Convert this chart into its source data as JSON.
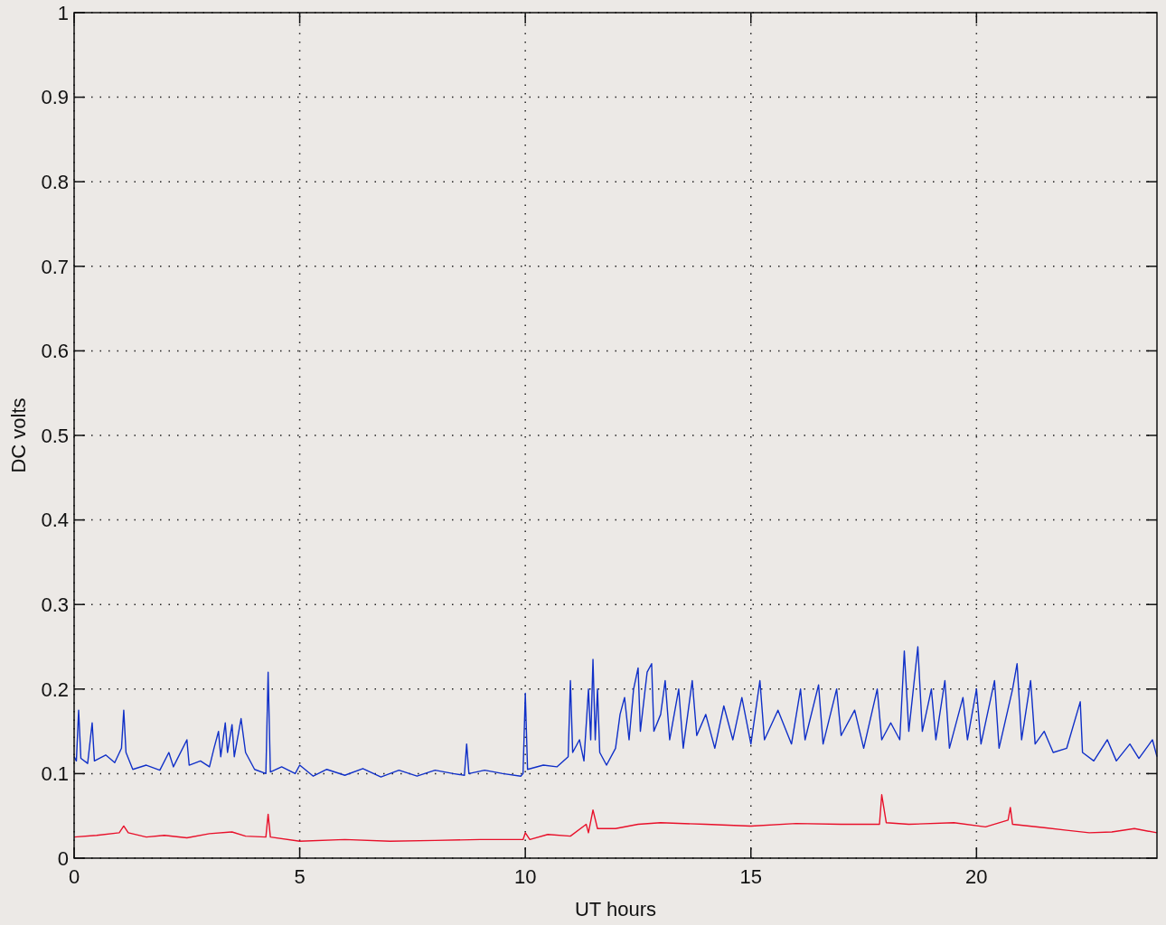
{
  "chart_data": {
    "type": "line",
    "xlabel": "UT hours",
    "ylabel": "DC volts",
    "xlim": [
      0,
      24
    ],
    "ylim": [
      0,
      1
    ],
    "xticks": [
      0,
      5,
      10,
      15,
      20
    ],
    "yticks": [
      0,
      0.1,
      0.2,
      0.3,
      0.4,
      0.5,
      0.6,
      0.7,
      0.8,
      0.9,
      1
    ],
    "grid": true,
    "marker": "none",
    "line_style": "solid",
    "series": [
      {
        "color": "#1030c8",
        "x": [
          0,
          0.05,
          0.1,
          0.15,
          0.3,
          0.4,
          0.45,
          0.7,
          0.9,
          1.05,
          1.1,
          1.15,
          1.3,
          1.6,
          1.9,
          2.1,
          2.2,
          2.5,
          2.55,
          2.8,
          3.0,
          3.1,
          3.2,
          3.25,
          3.35,
          3.4,
          3.5,
          3.55,
          3.7,
          3.8,
          4.0,
          4.25,
          4.3,
          4.35,
          4.6,
          4.9,
          5.0,
          5.3,
          5.6,
          6.0,
          6.4,
          6.8,
          7.2,
          7.6,
          8.0,
          8.4,
          8.65,
          8.7,
          8.75,
          9.1,
          9.5,
          9.9,
          9.95,
          10.0,
          10.05,
          10.4,
          10.7,
          10.95,
          11.0,
          11.05,
          11.2,
          11.3,
          11.4,
          11.45,
          11.5,
          11.55,
          11.6,
          11.65,
          11.8,
          12.0,
          12.1,
          12.2,
          12.3,
          12.4,
          12.5,
          12.55,
          12.7,
          12.8,
          12.85,
          13.0,
          13.1,
          13.2,
          13.4,
          13.5,
          13.7,
          13.8,
          14.0,
          14.2,
          14.4,
          14.6,
          14.8,
          15.0,
          15.2,
          15.3,
          15.6,
          15.9,
          16.1,
          16.2,
          16.5,
          16.6,
          16.9,
          17.0,
          17.3,
          17.5,
          17.8,
          17.9,
          18.1,
          18.3,
          18.4,
          18.5,
          18.7,
          18.8,
          19.0,
          19.1,
          19.3,
          19.4,
          19.7,
          19.8,
          20.0,
          20.1,
          20.4,
          20.5,
          20.8,
          20.9,
          21.0,
          21.2,
          21.3,
          21.5,
          21.7,
          22.0,
          22.3,
          22.35,
          22.6,
          22.9,
          23.1,
          23.4,
          23.6,
          23.9,
          24.0
        ],
        "values": [
          0.12,
          0.115,
          0.175,
          0.118,
          0.112,
          0.16,
          0.115,
          0.122,
          0.113,
          0.13,
          0.175,
          0.125,
          0.105,
          0.11,
          0.104,
          0.125,
          0.108,
          0.14,
          0.11,
          0.115,
          0.108,
          0.13,
          0.15,
          0.12,
          0.16,
          0.125,
          0.158,
          0.12,
          0.165,
          0.125,
          0.105,
          0.1,
          0.22,
          0.102,
          0.108,
          0.1,
          0.11,
          0.097,
          0.105,
          0.098,
          0.106,
          0.096,
          0.104,
          0.097,
          0.104,
          0.1,
          0.098,
          0.135,
          0.1,
          0.104,
          0.1,
          0.097,
          0.1,
          0.195,
          0.105,
          0.11,
          0.108,
          0.12,
          0.21,
          0.125,
          0.14,
          0.115,
          0.2,
          0.14,
          0.235,
          0.14,
          0.2,
          0.125,
          0.11,
          0.13,
          0.17,
          0.19,
          0.14,
          0.2,
          0.225,
          0.15,
          0.22,
          0.23,
          0.15,
          0.17,
          0.21,
          0.14,
          0.2,
          0.13,
          0.21,
          0.145,
          0.17,
          0.13,
          0.18,
          0.14,
          0.19,
          0.135,
          0.21,
          0.14,
          0.175,
          0.135,
          0.2,
          0.14,
          0.205,
          0.135,
          0.2,
          0.145,
          0.175,
          0.13,
          0.2,
          0.14,
          0.16,
          0.14,
          0.245,
          0.15,
          0.25,
          0.15,
          0.2,
          0.14,
          0.21,
          0.13,
          0.19,
          0.14,
          0.2,
          0.135,
          0.21,
          0.13,
          0.2,
          0.23,
          0.14,
          0.21,
          0.135,
          0.15,
          0.125,
          0.13,
          0.185,
          0.125,
          0.115,
          0.14,
          0.115,
          0.135,
          0.118,
          0.14,
          0.12
        ]
      },
      {
        "color": "#e8102a",
        "x": [
          0,
          0.5,
          1.0,
          1.1,
          1.2,
          1.6,
          2.0,
          2.5,
          3.0,
          3.5,
          3.8,
          4.25,
          4.3,
          4.35,
          5,
          6,
          7,
          8,
          9,
          9.95,
          10.0,
          10.1,
          10.5,
          11.0,
          11.35,
          11.4,
          11.5,
          11.6,
          12.0,
          12.5,
          13,
          14,
          15,
          16,
          17,
          17.85,
          17.9,
          18.0,
          18.5,
          19.5,
          20.2,
          20.7,
          20.75,
          20.8,
          21.5,
          22,
          22.5,
          23,
          23.5,
          24
        ],
        "values": [
          0.025,
          0.027,
          0.03,
          0.038,
          0.03,
          0.025,
          0.027,
          0.024,
          0.029,
          0.031,
          0.026,
          0.025,
          0.052,
          0.025,
          0.02,
          0.022,
          0.02,
          0.021,
          0.022,
          0.022,
          0.03,
          0.022,
          0.028,
          0.026,
          0.04,
          0.03,
          0.057,
          0.035,
          0.035,
          0.04,
          0.042,
          0.04,
          0.038,
          0.041,
          0.04,
          0.04,
          0.075,
          0.042,
          0.04,
          0.042,
          0.037,
          0.045,
          0.06,
          0.04,
          0.036,
          0.033,
          0.03,
          0.031,
          0.035,
          0.03
        ]
      }
    ]
  }
}
